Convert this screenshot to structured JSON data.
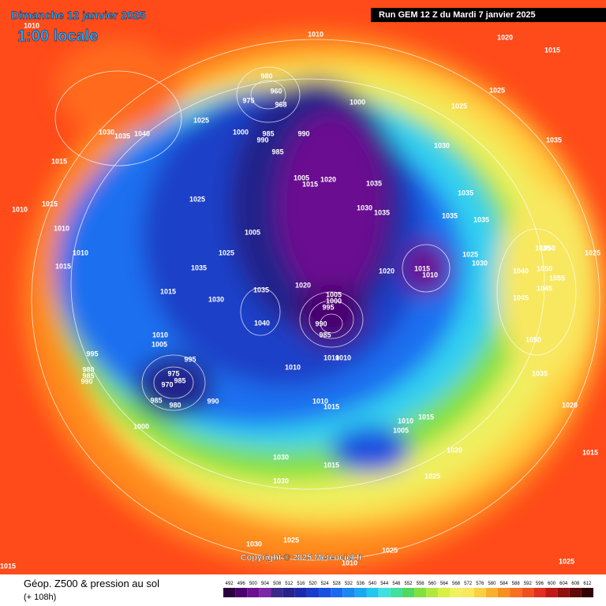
{
  "header": {
    "date": "Dimanche 12 janvier 2025",
    "time": "1:00 locale",
    "run": "Run GEM 12 Z du Mardi 7 janvier 2025"
  },
  "copyright": "Copyright © 2025 Meteociel.fr",
  "footer": {
    "title": "Géop. Z500 & pression au sol",
    "subtitle": "(+ 108h)"
  },
  "scale": {
    "values": [
      492,
      496,
      500,
      504,
      508,
      512,
      516,
      520,
      524,
      528,
      532,
      536,
      540,
      544,
      548,
      552,
      556,
      560,
      564,
      568,
      572,
      576,
      580,
      584,
      588,
      592,
      596,
      600,
      604,
      608,
      612
    ],
    "colors": [
      "#2a0040",
      "#4a0070",
      "#6a1090",
      "#7a2aa8",
      "#3a2a8a",
      "#24248a",
      "#1a2ab0",
      "#1a3ccc",
      "#1a50e0",
      "#1a6af0",
      "#1a88f0",
      "#1aa8f0",
      "#20c8f0",
      "#40e0e0",
      "#40e0a0",
      "#50d860",
      "#80e040",
      "#b0e840",
      "#d8f040",
      "#f0f060",
      "#f8e860",
      "#f8d040",
      "#f8b030",
      "#f89020",
      "#f87020",
      "#f05020",
      "#e03020",
      "#c01818",
      "#901010",
      "#600808",
      "#300404"
    ]
  },
  "isobar_labels": [
    1010,
    1020,
    1015,
    1010,
    1030,
    1035,
    1040,
    1025,
    980,
    960,
    975,
    968,
    1000,
    1025,
    1025,
    1000,
    985,
    990,
    990,
    985,
    1030,
    1035,
    1015,
    1015,
    1010,
    1025,
    1005,
    1020,
    1015,
    1035,
    1030,
    1035,
    1035,
    1035,
    1035,
    1010,
    1010,
    1005,
    1025,
    1015,
    1035,
    1020,
    1015,
    1010,
    1025,
    1030,
    1035,
    1050,
    1050,
    1055,
    1040,
    1045,
    1045,
    1050,
    1015,
    1030,
    1035,
    1020,
    1005,
    1000,
    995,
    990,
    985,
    1040,
    1010,
    1005,
    1010,
    1010,
    1010,
    995,
    995,
    980,
    985,
    990,
    975,
    970,
    985,
    985,
    980,
    990,
    1000,
    1010,
    1015,
    1010,
    1015,
    1005,
    1020,
    1015,
    1035,
    1020,
    1025,
    1030,
    1030,
    1015,
    1025,
    1030,
    1025,
    1025,
    1010,
    1015,
    1025
  ]
}
